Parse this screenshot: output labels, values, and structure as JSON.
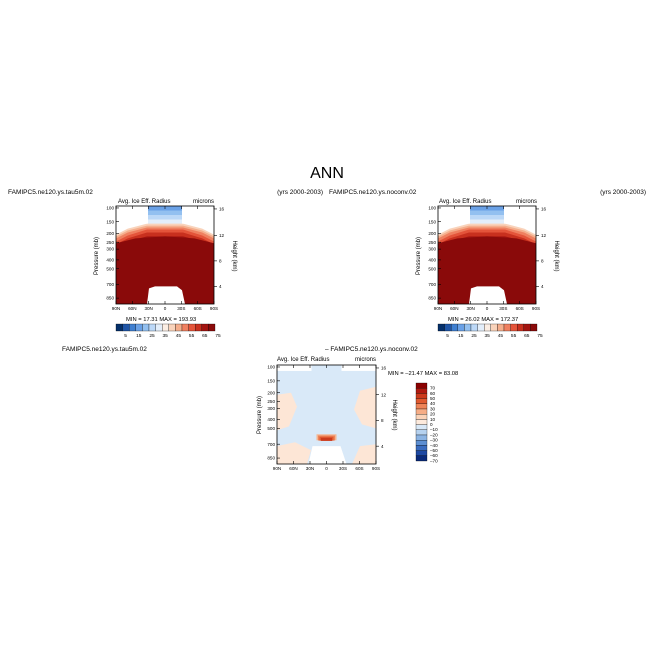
{
  "figure_title": "ANN",
  "chart_data": [
    {
      "type": "heatmap",
      "case": "FAMIPC5.ne120.ys.tau5m.02",
      "years": "(yrs 2000-2003)",
      "variable": "Avg. Ice Eff. Radius",
      "units": "microns",
      "ylabel": "Pressure (mb)",
      "y2label": "Height (km)",
      "x_ticks": [
        "90N",
        "60N",
        "30N",
        "0",
        "30S",
        "60S",
        "90S"
      ],
      "y_ticks": [
        "100",
        "150",
        "200",
        "250",
        "300",
        "400",
        "500",
        "700",
        "850"
      ],
      "height_ticks": [
        "16",
        "12",
        "8",
        "4"
      ],
      "stats": "MIN =   17.31   MAX =  193.93",
      "colorbar_labels": [
        "5",
        "15",
        "25",
        "35",
        "45",
        "55",
        "65",
        "75"
      ]
    },
    {
      "type": "heatmap",
      "case": "FAMIPC5.ne120.ys.noconv.02",
      "years": "(yrs 2000-2003)",
      "variable": "Avg. Ice Eff. Radius",
      "units": "microns",
      "ylabel": "Pressure (mb)",
      "y2label": "Height (km)",
      "x_ticks": [
        "90N",
        "60N",
        "30N",
        "0",
        "30S",
        "60S",
        "90S"
      ],
      "y_ticks": [
        "100",
        "150",
        "200",
        "250",
        "300",
        "400",
        "500",
        "700",
        "850"
      ],
      "height_ticks": [
        "16",
        "12",
        "8",
        "4"
      ],
      "stats": "MIN =   26.02   MAX =  172.37",
      "colorbar_labels": [
        "5",
        "15",
        "25",
        "35",
        "45",
        "55",
        "65",
        "75"
      ]
    },
    {
      "type": "heatmap",
      "case": "FAMIPC5.ne120.ys.tau5m.02",
      "diff_case": "–  FAMIPC5.ne120.ys.noconv.02",
      "variable": "Avg. Ice Eff. Radius",
      "units": "microns",
      "ylabel": "Pressure (mb)",
      "y2label": "Height (km)",
      "x_ticks": [
        "90N",
        "60N",
        "30N",
        "0",
        "30S",
        "60S",
        "90S"
      ],
      "y_ticks": [
        "100",
        "150",
        "200",
        "250",
        "300",
        "400",
        "500",
        "700",
        "850"
      ],
      "height_ticks": [
        "16",
        "12",
        "8",
        "4"
      ],
      "stats": "MIN =  –21.47   MAX =   83.08",
      "colorbar_labels": [
        "70",
        "60",
        "50",
        "40",
        "30",
        "20",
        "10",
        "0",
        "–10",
        "–20",
        "–30",
        "–40",
        "–50",
        "–60",
        "–70"
      ]
    }
  ],
  "colors": {
    "abs_scale": [
      "#05306a",
      "#1f55a6",
      "#3f7fd0",
      "#6aa1e6",
      "#93c0f0",
      "#bcd8f7",
      "#e3eefa",
      "#fbeee4",
      "#f9d3bb",
      "#f5ae8c",
      "#ef8060",
      "#e4543a",
      "#c8301e",
      "#a31410",
      "#8a0a0a"
    ],
    "diff_scale": [
      "#8a0000",
      "#b01a10",
      "#cc3a1c",
      "#e05a30",
      "#ee8458",
      "#f6ad86",
      "#fbd3b8",
      "#fdeadc",
      "#d8e8f7",
      "#b6d2ef",
      "#8cb4e3",
      "#5d8fd2",
      "#3a6cbf",
      "#1e49a3",
      "#0a2a7a"
    ]
  }
}
